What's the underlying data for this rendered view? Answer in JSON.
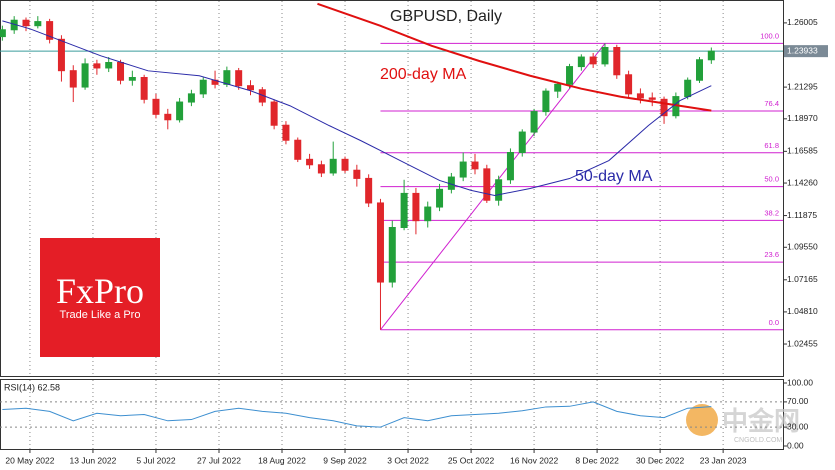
{
  "chart_data": [
    {
      "type": "candlestick",
      "title": "GBPUSD, Daily",
      "x": [
        -7,
        -4,
        -1,
        2,
        5,
        8,
        11,
        14,
        17,
        20,
        23,
        26,
        29,
        32,
        35,
        38,
        41,
        44,
        47,
        50,
        53,
        56,
        59,
        62,
        65,
        68,
        71,
        74,
        77,
        80,
        83,
        86,
        89,
        92,
        95,
        98,
        101,
        104,
        107,
        110,
        113,
        116,
        119,
        122,
        125,
        128,
        131,
        134,
        137,
        140,
        143,
        146,
        149,
        152,
        155,
        158,
        161,
        164,
        167,
        170,
        173
      ],
      "open": [
        1.25,
        1.255,
        1.262,
        1.258,
        1.261,
        1.248,
        1.225,
        1.213,
        1.23,
        1.227,
        1.231,
        1.218,
        1.22,
        1.204,
        1.193,
        1.189,
        1.202,
        1.208,
        1.218,
        1.215,
        1.225,
        1.214,
        1.211,
        1.202,
        1.185,
        1.174,
        1.16,
        1.156,
        1.15,
        1.16,
        1.152,
        1.146,
        1.128,
        1.07,
        1.11,
        1.135,
        1.115,
        1.125,
        1.138,
        1.147,
        1.158,
        1.153,
        1.13,
        1.145,
        1.165,
        1.18,
        1.195,
        1.21,
        1.215,
        1.228,
        1.235,
        1.23,
        1.242,
        1.222,
        1.208,
        1.205,
        1.204,
        1.192,
        1.206,
        1.218,
        1.233
      ],
      "high": [
        1.258,
        1.265,
        1.264,
        1.265,
        1.263,
        1.251,
        1.229,
        1.234,
        1.233,
        1.235,
        1.233,
        1.225,
        1.222,
        1.208,
        1.197,
        1.205,
        1.211,
        1.22,
        1.225,
        1.228,
        1.227,
        1.218,
        1.213,
        1.204,
        1.188,
        1.176,
        1.164,
        1.159,
        1.173,
        1.162,
        1.156,
        1.149,
        1.131,
        1.115,
        1.145,
        1.139,
        1.129,
        1.142,
        1.15,
        1.165,
        1.164,
        1.156,
        1.148,
        1.168,
        1.182,
        1.197,
        1.212,
        1.217,
        1.23,
        1.237,
        1.238,
        1.245,
        1.244,
        1.225,
        1.212,
        1.209,
        1.206,
        1.209,
        1.22,
        1.235,
        1.242
      ],
      "low": [
        1.247,
        1.252,
        1.254,
        1.256,
        1.245,
        1.217,
        1.202,
        1.211,
        1.222,
        1.224,
        1.215,
        1.214,
        1.201,
        1.19,
        1.182,
        1.187,
        1.199,
        1.205,
        1.212,
        1.213,
        1.211,
        1.207,
        1.199,
        1.182,
        1.171,
        1.158,
        1.153,
        1.147,
        1.148,
        1.15,
        1.14,
        1.125,
        1.035,
        1.066,
        1.108,
        1.105,
        1.11,
        1.122,
        1.135,
        1.144,
        1.149,
        1.128,
        1.126,
        1.142,
        1.162,
        1.177,
        1.192,
        1.205,
        1.212,
        1.225,
        1.227,
        1.228,
        1.219,
        1.205,
        1.201,
        1.199,
        1.186,
        1.19,
        1.204,
        1.216,
        1.23
      ],
      "close": [
        1.255,
        1.262,
        1.258,
        1.261,
        1.248,
        1.225,
        1.213,
        1.23,
        1.227,
        1.231,
        1.218,
        1.22,
        1.204,
        1.193,
        1.189,
        1.202,
        1.208,
        1.218,
        1.215,
        1.225,
        1.214,
        1.211,
        1.202,
        1.185,
        1.174,
        1.16,
        1.156,
        1.15,
        1.16,
        1.152,
        1.146,
        1.128,
        1.07,
        1.11,
        1.135,
        1.115,
        1.125,
        1.138,
        1.147,
        1.158,
        1.153,
        1.13,
        1.145,
        1.165,
        1.18,
        1.195,
        1.21,
        1.215,
        1.228,
        1.235,
        1.23,
        1.242,
        1.222,
        1.208,
        1.205,
        1.204,
        1.192,
        1.206,
        1.218,
        1.233,
        1.2393
      ],
      "up_color": "#22a03a",
      "down_color": "#e0262b",
      "lines": [
        {
          "name": "200-day MA",
          "color": "#e01010",
          "x": [
            73,
            89,
            102,
            114,
            127,
            140,
            150,
            160,
            173
          ],
          "values": [
            1.274,
            1.2579,
            1.2432,
            1.2322,
            1.2213,
            1.2118,
            1.2059,
            1.2015,
            1.1957
          ]
        },
        {
          "name": "50-day MA",
          "color": "#2a2aa8",
          "x": [
            -7,
            0,
            8,
            18,
            30,
            43,
            56,
            66,
            76,
            84,
            94,
            104,
            112,
            118,
            127,
            137,
            147,
            157,
            165,
            173
          ],
          "values": [
            1.2615,
            1.2557,
            1.2469,
            1.2359,
            1.2249,
            1.2213,
            1.2103,
            1.1993,
            1.1847,
            1.1737,
            1.1591,
            1.1445,
            1.1372,
            1.1335,
            1.1386,
            1.1459,
            1.1591,
            1.1847,
            1.203,
            1.214
          ]
        }
      ],
      "fibonacci": {
        "color": "#d020d0",
        "x": [
          89,
          146
        ],
        "levels": [
          {
            "level": {
              "value": 100,
              "label": "100.0"
            },
            "price": 1.245
          },
          {
            "level": 76.4,
            "price": 1.1954
          },
          {
            "level": 61.8,
            "price": 1.1648
          },
          {
            "level": {
              "value": 50,
              "label": "50.0"
            },
            "price": 1.14
          },
          {
            "level": 38.2,
            "price": 1.1152
          },
          {
            "level": 23.6,
            "price": 1.0846
          },
          {
            "level": {
              "value": 0,
              "label": "0.0"
            },
            "price": 1.035
          }
        ]
      },
      "last_price": 1.23933,
      "last_price_color": "#3a9c9c",
      "xlim": [
        -7.6,
        191.2
      ],
      "xticks": [
        {
          "value": 0,
          "label": "20 May 2022"
        },
        {
          "value": 16,
          "label": "13 Jun 2022"
        },
        {
          "value": 32,
          "label": "5 Jul 2022"
        },
        {
          "value": 48,
          "label": "27 Jul 2022"
        },
        {
          "value": 64,
          "label": "18 Aug 2022"
        },
        {
          "value": 80,
          "label": "9 Sep 2022"
        },
        {
          "value": 96,
          "label": "3 Oct 2022"
        },
        {
          "value": 112,
          "label": "25 Oct 2022"
        },
        {
          "value": 128,
          "label": "16 Nov 2022"
        },
        {
          "value": 144,
          "label": "8 Dec 2022"
        },
        {
          "value": 160,
          "label": "30 Dec 2022"
        },
        {
          "value": 176,
          "label": "23 Jan 2023"
        }
      ],
      "ylim": [
        1.0011,
        1.2761
      ],
      "yticks": [
        1.26005,
        1.21295,
        {
          "value": 1.1897,
          "label": "1.18970"
        },
        1.16585,
        {
          "value": 1.1426,
          "label": "1.14260"
        },
        1.11875,
        {
          "value": 1.0955,
          "label": "1.09550"
        },
        1.07165,
        {
          "value": 1.0481,
          "label": "1.04810"
        },
        1.02455
      ],
      "grid": true
    },
    {
      "type": "line",
      "title": "RSI(14) 62.58",
      "color": "#3d8fd0",
      "x": [
        -7,
        -1,
        5,
        11,
        17,
        23,
        29,
        35,
        41,
        47,
        53,
        59,
        65,
        71,
        77,
        83,
        89,
        95,
        101,
        107,
        113,
        119,
        125,
        131,
        137,
        143,
        149,
        155,
        161,
        167,
        173
      ],
      "values": [
        58,
        60,
        55,
        40,
        52,
        48,
        50,
        40,
        42,
        55,
        60,
        55,
        52,
        45,
        40,
        32,
        30,
        45,
        40,
        48,
        50,
        52,
        56,
        62,
        63,
        70,
        55,
        48,
        45,
        60,
        62.58
      ],
      "ylim": [
        0,
        100
      ],
      "yticks": [
        {
          "value": 100,
          "label": "100.00"
        },
        {
          "value": 70,
          "label": "70.00"
        },
        {
          "value": 30,
          "label": "30.00"
        },
        {
          "value": 0,
          "label": "0.00"
        }
      ],
      "levels": [
        70,
        30
      ]
    }
  ],
  "logo": {
    "name": "FxPro",
    "tagline": "Trade Like a Pro"
  },
  "watermark": {
    "name": "中金网",
    "site": "CNGOLD.COM"
  }
}
